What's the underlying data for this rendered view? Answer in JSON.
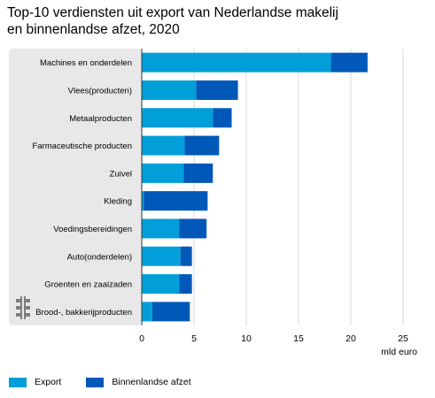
{
  "chart_data": {
    "type": "bar",
    "orientation": "horizontal",
    "stacked": true,
    "title_lines": [
      "Top-10 verdiensten uit export van Nederlandse makelij",
      "en binnenlandse afzet, 2020"
    ],
    "categories": [
      "Machines en onderdelen",
      "Vlees(producten)",
      "Metaalproducten",
      "Farmaceutische producten",
      "Zuivel",
      "Kleding",
      "Voedingsbereidingen",
      "Auto(onderdelen)",
      "Groenten en zaaizaden",
      "Brood-, bakkerijproducten"
    ],
    "series": [
      {
        "name": "Export",
        "color": "#009fd9",
        "values": [
          18.1,
          5.2,
          6.8,
          4.1,
          4.0,
          0.2,
          3.6,
          3.7,
          3.6,
          1.0
        ]
      },
      {
        "name": "Binnenlandse afzet",
        "color": "#0058b8",
        "values": [
          3.5,
          4.0,
          1.8,
          3.3,
          2.8,
          6.1,
          2.6,
          1.1,
          1.2,
          3.6
        ]
      }
    ],
    "xlim": [
      0,
      25
    ],
    "xticks": [
      "0",
      "5",
      "10",
      "15",
      "20",
      "25"
    ],
    "xlabel": "mld euro",
    "grid": true,
    "legend_position": "bottom-left"
  },
  "logo_icon": "cbs-logo-icon"
}
